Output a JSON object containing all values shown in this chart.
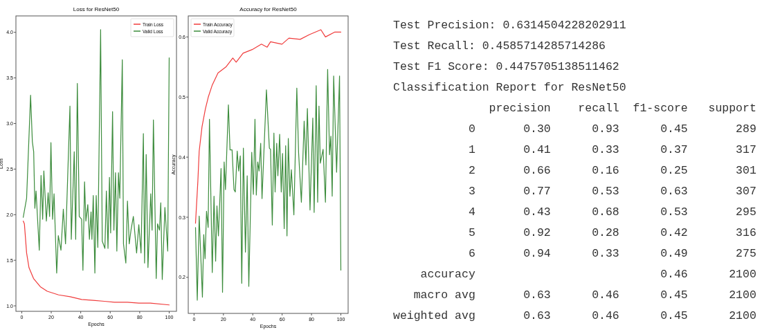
{
  "chart_data": [
    {
      "type": "line",
      "title": "Loss for ResNet50",
      "xlabel": "Epochs",
      "ylabel": "Loss",
      "xlim": [
        -3.95,
        104.95
      ],
      "xticks": [
        0,
        20,
        40,
        60,
        80,
        100
      ],
      "ylim": [
        0.94,
        4.18
      ],
      "yticks": [
        {
          "value": 1,
          "label": "1.0"
        },
        {
          "value": 1.5,
          "label": "1.5"
        },
        {
          "value": 2,
          "label": "2.0"
        },
        {
          "value": 2.5,
          "label": "2.5"
        },
        {
          "value": 3,
          "label": "3.0"
        },
        {
          "value": 3.5,
          "label": "3.5"
        },
        {
          "value": 4,
          "label": "4.0"
        }
      ],
      "legend": "top right",
      "grid": false,
      "series": [
        {
          "name": "Train Loss",
          "color": "#f03c3c",
          "x": [
            1,
            1.8,
            3.3,
            4.9,
            8,
            12.6,
            17.3,
            25,
            32.8,
            40.6,
            48.4,
            56.1,
            62.9,
            71.7,
            79.4,
            87.2,
            100
          ],
          "values": [
            1.93,
            1.9,
            1.58,
            1.42,
            1.3,
            1.21,
            1.16,
            1.12,
            1.1,
            1.07,
            1.06,
            1.05,
            1.04,
            1.04,
            1.03,
            1.03,
            1.01
          ]
        },
        {
          "name": "Valid Loss",
          "color": "#3c8c3c",
          "x": [
            1,
            3.3,
            6,
            7.2,
            8.1,
            8.9,
            9.7,
            11.9,
            13.1,
            14.2,
            15,
            16.7,
            17.9,
            18.9,
            19.8,
            20.9,
            21.9,
            23.7,
            24.8,
            26.6,
            28.2,
            29.7,
            32.7,
            33.6,
            35.6,
            36.6,
            37.7,
            39,
            40.6,
            41.5,
            42.6,
            43.5,
            44.8,
            45.9,
            47,
            47.6,
            48.5,
            49.6,
            50.5,
            51.6,
            53.5,
            54.6,
            56.4,
            57.4,
            58.5,
            59.5,
            60.3,
            61.6,
            62.5,
            63.6,
            64.5,
            65.6,
            66.5,
            68.2,
            69,
            70.6,
            71.7,
            72.9,
            74.1,
            75.7,
            77.9,
            79.4,
            80.9,
            82.5,
            83.3,
            84.4,
            85.6,
            87.5,
            88.4,
            89.3,
            91.2,
            92.1,
            93.4,
            94.3,
            95.3,
            97.1,
            99,
            100
          ],
          "values": [
            1.97,
            2.18,
            3.31,
            2.8,
            2.69,
            2.07,
            2.26,
            1.61,
            2.43,
            1.95,
            2.48,
            1.93,
            2.24,
            1.98,
            2.79,
            1.95,
            2.23,
            1.36,
            1.77,
            1.61,
            2.06,
            1.68,
            3.19,
            1.73,
            2.69,
            1.73,
            3.44,
            1.98,
            1.95,
            1.39,
            2.36,
            1.93,
            2.11,
            1.73,
            2.03,
            1.73,
            2.21,
            1.36,
            2.21,
            1.64,
            4.03,
            1.71,
            1.63,
            2.26,
            1.63,
            2.41,
            1.8,
            3.13,
            1.83,
            2.46,
            1.6,
            2.46,
            2.18,
            3.7,
            1.68,
            1.47,
            2.15,
            1.68,
            1.83,
            1.98,
            1.58,
            1.89,
            1.58,
            2.89,
            1.47,
            2.66,
            1.42,
            2.23,
            1.83,
            3.04,
            1.3,
            1.9,
            1.83,
            2.13,
            1.29,
            2.08,
            1.6,
            3.72
          ]
        }
      ]
    },
    {
      "type": "line",
      "title": "Accuracy for ResNet50",
      "xlabel": "Epochs",
      "ylabel": "Accuracy",
      "xlim": [
        -3.95,
        104.95
      ],
      "xticks": [
        0,
        20,
        40,
        60,
        80,
        100
      ],
      "ylim": [
        0.14,
        0.635
      ],
      "yticks": [
        0.2,
        0.3,
        0.4,
        0.5,
        0.6
      ],
      "legend": "top left",
      "grid": false,
      "series": [
        {
          "name": "Train Accuracy",
          "color": "#f03c3c",
          "x": [
            1,
            2.6,
            3.5,
            5.4,
            7.7,
            9.7,
            12.4,
            16.3,
            21.7,
            26.4,
            28.7,
            33.4,
            39.6,
            45.9,
            49.8,
            52.1,
            59.9,
            64.6,
            72.3,
            78.6,
            86.4,
            89.5,
            95.7,
            100
          ],
          "values": [
            0.29,
            0.36,
            0.41,
            0.45,
            0.48,
            0.5,
            0.52,
            0.54,
            0.55,
            0.565,
            0.558,
            0.573,
            0.579,
            0.588,
            0.583,
            0.592,
            0.588,
            0.598,
            0.596,
            0.604,
            0.612,
            0.6,
            0.608,
            0.608
          ]
        },
        {
          "name": "Valid Accuracy",
          "color": "#3c8c3c",
          "x": [
            1,
            2.2,
            3.5,
            5.7,
            6.6,
            7.5,
            8.5,
            9.6,
            10.5,
            12.4,
            13.6,
            14.7,
            15.6,
            16.6,
            18.4,
            19.4,
            20.5,
            21.4,
            23.4,
            24.5,
            25.9,
            27.2,
            28.1,
            29.4,
            30.4,
            31.5,
            32.5,
            33.6,
            35,
            36.2,
            37.3,
            39.3,
            40.4,
            41.5,
            42.4,
            43.4,
            44.3,
            45.4,
            46.3,
            49.3,
            51.3,
            52.1,
            53.3,
            54.4,
            55.2,
            56.3,
            57.1,
            58.3,
            59.4,
            60.3,
            61.4,
            62.4,
            63.3,
            64.2,
            65.3,
            66.3,
            68,
            70,
            71.2,
            73.1,
            75,
            76.2,
            77.2,
            79,
            80.9,
            81.8,
            83.2,
            84.2,
            85.1,
            86,
            87.9,
            89.5,
            91,
            92.3,
            93.2,
            94.1,
            95.1,
            97.1,
            99.1,
            100
          ],
          "values": [
            0.283,
            0.162,
            0.302,
            0.167,
            0.271,
            0.231,
            0.31,
            0.283,
            0.463,
            0.208,
            0.335,
            0.227,
            0.319,
            0.269,
            0.381,
            0.175,
            0.392,
            0.346,
            0.487,
            0.412,
            0.412,
            0.346,
            0.342,
            0.41,
            0.377,
            0.402,
            0.19,
            0.415,
            0.242,
            0.369,
            0.185,
            0.408,
            0.338,
            0.463,
            0.337,
            0.392,
            0.377,
            0.423,
            0.331,
            0.512,
            0.415,
            0.413,
            0.287,
            0.44,
            0.342,
            0.423,
            0.369,
            0.438,
            0.342,
            0.406,
            0.281,
            0.419,
            0.269,
            0.431,
            0.335,
            0.379,
            0.304,
            0.515,
            0.408,
            0.325,
            0.46,
            0.387,
            0.481,
            0.312,
            0.465,
            0.308,
            0.519,
            0.325,
            0.485,
            0.39,
            0.413,
            0.325,
            0.546,
            0.404,
            0.435,
            0.335,
            0.535,
            0.375,
            0.535,
            0.212
          ]
        }
      ]
    },
    {
      "type": "other",
      "annotations": [
        "Test Precision: 0.6314504228202911",
        "Test Recall: 0.4585714285714286",
        "Test F1 Score: 0.4475705138511462",
        "Classification Report for ResNet50",
        "              precision    recall  f1-score   support",
        "           0       0.30      0.93      0.45       289",
        "           1       0.41      0.33      0.37       317",
        "           2       0.66      0.16      0.25       301",
        "           3       0.77      0.53      0.63       307",
        "           4       0.43      0.68      0.53       295",
        "           5       0.92      0.28      0.42       316",
        "           6       0.94      0.33      0.49       275",
        "    accuracy                           0.46      2100",
        "   macro avg       0.63      0.46      0.45      2100",
        "weighted avg       0.63      0.46      0.45      2100"
      ]
    }
  ]
}
